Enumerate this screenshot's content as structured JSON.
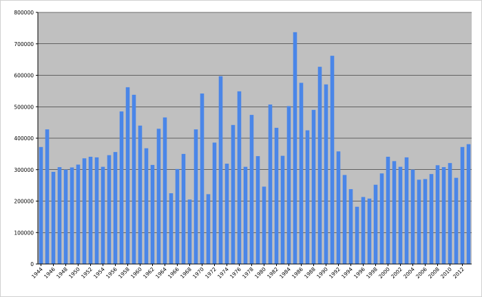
{
  "colors": {
    "plot_background": "#c0c0c0",
    "bar_fill": "#4a86e8",
    "gridline": "#000000",
    "axis": "#000000"
  },
  "chart_data": {
    "type": "bar",
    "title": "",
    "xlabel": "",
    "ylabel": "",
    "grid": true,
    "legend": "none",
    "ylim": [
      0,
      800000
    ],
    "y_ticks": [
      "0",
      "100000",
      "200000",
      "300000",
      "400000",
      "500000",
      "600000",
      "700000",
      "800000"
    ],
    "y_tick_values": [
      0,
      100000,
      200000,
      300000,
      400000,
      500000,
      600000,
      700000,
      800000
    ],
    "x_tick_labels": [
      "1944",
      "1946",
      "1948",
      "1950",
      "1952",
      "1954",
      "1956",
      "1958",
      "1960",
      "1962",
      "1964",
      "1966",
      "1968",
      "1970",
      "1972",
      "1974",
      "1976",
      "1978",
      "1980",
      "1982",
      "1984",
      "1986",
      "1988",
      "1990",
      "1992",
      "1994",
      "1996",
      "1998",
      "2000",
      "2002",
      "2004",
      "2006",
      "2008",
      "2010",
      "2012"
    ],
    "categories": [
      "1944",
      "1945",
      "1946",
      "1947",
      "1948",
      "1949",
      "1950",
      "1951",
      "1952",
      "1953",
      "1954",
      "1955",
      "1956",
      "1957",
      "1958",
      "1959",
      "1960",
      "1961",
      "1962",
      "1963",
      "1964",
      "1965",
      "1966",
      "1967",
      "1968",
      "1969",
      "1970",
      "1971",
      "1972",
      "1973",
      "1974",
      "1975",
      "1976",
      "1977",
      "1978",
      "1979",
      "1980",
      "1981",
      "1982",
      "1983",
      "1984",
      "1985",
      "1986",
      "1987",
      "1988",
      "1989",
      "1990",
      "1991",
      "1992",
      "1993",
      "1994",
      "1995",
      "1996",
      "1997",
      "1998",
      "1999",
      "2000",
      "2001",
      "2002",
      "2003",
      "2004",
      "2005",
      "2006",
      "2007",
      "2008",
      "2009",
      "2010",
      "2011",
      "2012",
      "2013"
    ],
    "values": [
      372000,
      428000,
      293000,
      308000,
      300000,
      307000,
      316000,
      336000,
      341000,
      339000,
      309000,
      346000,
      356000,
      485000,
      562000,
      538000,
      440000,
      368000,
      315000,
      430000,
      466000,
      225000,
      302000,
      350000,
      205000,
      428000,
      542000,
      222000,
      386000,
      597000,
      319000,
      442000,
      549000,
      309000,
      474000,
      343000,
      246000,
      507000,
      433000,
      344000,
      502000,
      737000,
      576000,
      425000,
      490000,
      627000,
      571000,
      662000,
      358000,
      283000,
      238000,
      182000,
      213000,
      208000,
      252000,
      288000,
      341000,
      327000,
      309000,
      339000,
      300000,
      268000,
      270000,
      286000,
      314000,
      308000,
      321000,
      274000,
      372000,
      381000
    ]
  }
}
